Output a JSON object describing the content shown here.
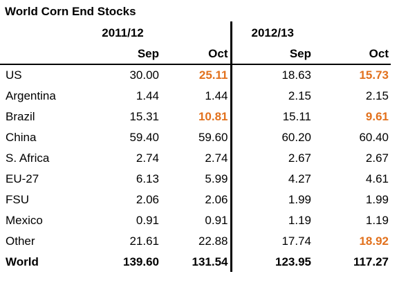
{
  "title": "World Corn End Stocks",
  "colors": {
    "background": "#FFFFFF",
    "body_text": "#000000",
    "highlight_text": "#E2711D",
    "rule": "#000000"
  },
  "chart_data": {
    "type": "table",
    "title": "World Corn End Stocks",
    "column_groups": [
      {
        "label": "2011/12"
      },
      {
        "label": "2012/13"
      }
    ],
    "month_columns": [
      "Sep",
      "Oct",
      "Sep",
      "Oct"
    ],
    "rows": [
      {
        "label": "US",
        "values": [
          "30.00",
          "25.11",
          "18.63",
          "15.73"
        ],
        "highlight": [
          false,
          true,
          false,
          true
        ],
        "bold": false
      },
      {
        "label": "Argentina",
        "values": [
          "1.44",
          "1.44",
          "2.15",
          "2.15"
        ],
        "highlight": [
          false,
          false,
          false,
          false
        ],
        "bold": false
      },
      {
        "label": "Brazil",
        "values": [
          "15.31",
          "10.81",
          "15.11",
          "9.61"
        ],
        "highlight": [
          false,
          true,
          false,
          true
        ],
        "bold": false
      },
      {
        "label": "China",
        "values": [
          "59.40",
          "59.60",
          "60.20",
          "60.40"
        ],
        "highlight": [
          false,
          false,
          false,
          false
        ],
        "bold": false
      },
      {
        "label": "S. Africa",
        "values": [
          "2.74",
          "2.74",
          "2.67",
          "2.67"
        ],
        "highlight": [
          false,
          false,
          false,
          false
        ],
        "bold": false
      },
      {
        "label": "EU-27",
        "values": [
          "6.13",
          "5.99",
          "4.27",
          "4.61"
        ],
        "highlight": [
          false,
          false,
          false,
          false
        ],
        "bold": false
      },
      {
        "label": "FSU",
        "values": [
          "2.06",
          "2.06",
          "1.99",
          "1.99"
        ],
        "highlight": [
          false,
          false,
          false,
          false
        ],
        "bold": false
      },
      {
        "label": "Mexico",
        "values": [
          "0.91",
          "0.91",
          "1.19",
          "1.19"
        ],
        "highlight": [
          false,
          false,
          false,
          false
        ],
        "bold": false
      },
      {
        "label": "Other",
        "values": [
          "21.61",
          "22.88",
          "17.74",
          "18.92"
        ],
        "highlight": [
          false,
          false,
          false,
          true
        ],
        "bold": false
      },
      {
        "label": "World",
        "values": [
          "139.60",
          "131.54",
          "123.95",
          "117.27"
        ],
        "highlight": [
          false,
          false,
          false,
          false
        ],
        "bold": true
      }
    ]
  }
}
